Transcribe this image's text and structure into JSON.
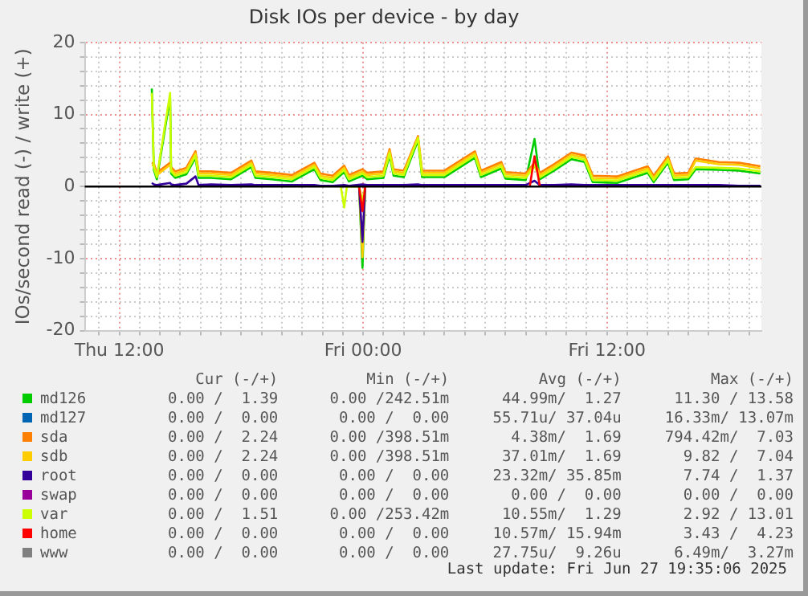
{
  "chart_data": {
    "type": "line",
    "title": "Disk IOs per device - by day",
    "ylabel": "IOs/second read (-) / write (+)",
    "x": [
      "2025-06-26T13:36",
      "2025-06-26T13:42",
      "2025-06-26T13:51",
      "2025-06-26T14:30",
      "2025-06-26T14:33",
      "2025-06-26T14:45",
      "2025-06-26T15:18",
      "2025-06-26T15:45",
      "2025-06-26T15:54",
      "2025-06-26T16:30",
      "2025-06-26T17:30",
      "2025-06-26T18:30",
      "2025-06-26T18:42",
      "2025-06-26T19:30",
      "2025-06-26T20:30",
      "2025-06-26T21:36",
      "2025-06-26T21:54",
      "2025-06-26T22:30",
      "2025-06-26T23:04",
      "2025-06-26T23:18",
      "2025-06-26T23:58",
      "2025-06-27T00:12",
      "2025-06-27T01:00",
      "2025-06-27T01:18",
      "2025-06-27T01:30",
      "2025-06-27T02:00",
      "2025-06-27T02:42",
      "2025-06-27T02:54",
      "2025-06-27T04:00",
      "2025-06-27T05:30",
      "2025-06-27T05:48",
      "2025-06-27T06:48",
      "2025-06-27T07:00",
      "2025-06-27T08:00",
      "2025-06-27T08:26",
      "2025-06-27T08:42",
      "2025-06-27T09:24",
      "2025-06-27T10:15",
      "2025-06-27T10:54",
      "2025-06-27T11:18",
      "2025-06-27T12:30",
      "2025-06-27T14:00",
      "2025-06-27T14:18",
      "2025-06-27T15:00",
      "2025-06-27T15:18",
      "2025-06-27T16:00",
      "2025-06-27T16:22",
      "2025-06-27T17:30",
      "2025-06-27T18:30",
      "2025-06-27T19:33"
    ],
    "xlim": [
      "2025-06-26T10:18",
      "2025-06-27T19:36"
    ],
    "xticks": [
      {
        "value": "2025-06-26T11:00",
        "label": null
      },
      {
        "value": "2025-06-26T12:00",
        "label": "Thu 12:00"
      },
      {
        "value": "2025-06-26T13:00",
        "label": null
      },
      {
        "value": "2025-06-26T14:00",
        "label": null
      },
      {
        "value": "2025-06-26T15:00",
        "label": null
      },
      {
        "value": "2025-06-26T16:00",
        "label": null
      },
      {
        "value": "2025-06-26T17:00",
        "label": null
      },
      {
        "value": "2025-06-26T18:00",
        "label": null
      },
      {
        "value": "2025-06-26T19:00",
        "label": null
      },
      {
        "value": "2025-06-26T20:00",
        "label": null
      },
      {
        "value": "2025-06-26T21:00",
        "label": null
      },
      {
        "value": "2025-06-26T22:00",
        "label": null
      },
      {
        "value": "2025-06-26T23:00",
        "label": null
      },
      {
        "value": "2025-06-27T00:00",
        "label": "Fri 00:00"
      },
      {
        "value": "2025-06-27T01:00",
        "label": null
      },
      {
        "value": "2025-06-27T02:00",
        "label": null
      },
      {
        "value": "2025-06-27T03:00",
        "label": null
      },
      {
        "value": "2025-06-27T04:00",
        "label": null
      },
      {
        "value": "2025-06-27T05:00",
        "label": null
      },
      {
        "value": "2025-06-27T06:00",
        "label": null
      },
      {
        "value": "2025-06-27T07:00",
        "label": null
      },
      {
        "value": "2025-06-27T08:00",
        "label": null
      },
      {
        "value": "2025-06-27T09:00",
        "label": null
      },
      {
        "value": "2025-06-27T10:00",
        "label": null
      },
      {
        "value": "2025-06-27T11:00",
        "label": null
      },
      {
        "value": "2025-06-27T12:00",
        "label": "Fri 12:00"
      },
      {
        "value": "2025-06-27T13:00",
        "label": null
      },
      {
        "value": "2025-06-27T14:00",
        "label": null
      },
      {
        "value": "2025-06-27T15:00",
        "label": null
      },
      {
        "value": "2025-06-27T16:00",
        "label": null
      },
      {
        "value": "2025-06-27T17:00",
        "label": null
      },
      {
        "value": "2025-06-27T18:00",
        "label": null
      },
      {
        "value": "2025-06-27T19:00",
        "label": null
      }
    ],
    "ylim": [
      -20,
      20
    ],
    "yticks": [
      -20,
      {
        "value": -18,
        "label": null
      },
      {
        "value": -16,
        "label": null
      },
      {
        "value": -14,
        "label": null
      },
      {
        "value": -12,
        "label": null
      },
      -10,
      {
        "value": -8,
        "label": null
      },
      {
        "value": -6,
        "label": null
      },
      {
        "value": -4,
        "label": null
      },
      {
        "value": -2,
        "label": null
      },
      0,
      {
        "value": 2,
        "label": null
      },
      {
        "value": 4,
        "label": null
      },
      {
        "value": 6,
        "label": null
      },
      {
        "value": 8,
        "label": null
      },
      10,
      {
        "value": 12,
        "label": null
      },
      {
        "value": 14,
        "label": null
      },
      {
        "value": 16,
        "label": null
      },
      {
        "value": 18,
        "label": null
      },
      20
    ],
    "grid": true,
    "legend": "bottom",
    "marker": "none",
    "ref_lines": [
      {
        "axis": "y",
        "value": 0,
        "color": "#000000"
      }
    ],
    "series": [
      {
        "name": "md126",
        "color": "#00cc00",
        "values": [
          13.6,
          2.3,
          1.0,
          12.4,
          1.8,
          1.2,
          1.7,
          4.0,
          1.2,
          1.2,
          1.0,
          2.7,
          1.2,
          1.0,
          0.7,
          2.4,
          0.9,
          0.6,
          2.0,
          0.7,
          1.5,
          1.0,
          1.2,
          4.3,
          1.5,
          1.3,
          6.4,
          1.3,
          1.3,
          4.0,
          1.3,
          2.5,
          1.1,
          0.9,
          6.6,
          1.0,
          2.2,
          3.8,
          3.4,
          0.6,
          0.5,
          1.9,
          0.6,
          3.3,
          0.9,
          1.0,
          2.4,
          2.3,
          2.2,
          1.8
        ]
      },
      {
        "x": [
          "2025-06-26T23:48",
          "2025-06-26T23:58",
          "2025-06-27T00:06"
        ],
        "color": "#00cc00",
        "values": [
          0,
          -11.3,
          0
        ]
      },
      {
        "name": "md127",
        "color": "#0066b3",
        "values": [
          null,
          null,
          null,
          null,
          null,
          null,
          null,
          null,
          null,
          null,
          null,
          null,
          null,
          null,
          null,
          null,
          null,
          null,
          null,
          null,
          null,
          null,
          null,
          null,
          null,
          null,
          null,
          null,
          null,
          null,
          null,
          null,
          null,
          null,
          null,
          null,
          null,
          null,
          null,
          null,
          null,
          null,
          null,
          null,
          null,
          null,
          null,
          null,
          null,
          null
        ]
      },
      {
        "name": "sda",
        "color": "#ff8000",
        "values": [
          3.3,
          3.2,
          1.9,
          3.3,
          2.7,
          2.1,
          2.6,
          4.9,
          2.1,
          2.1,
          1.9,
          3.6,
          2.1,
          1.9,
          1.6,
          3.3,
          1.8,
          1.5,
          2.9,
          1.6,
          2.4,
          1.9,
          2.1,
          5.2,
          2.4,
          2.2,
          7.0,
          2.2,
          2.2,
          4.9,
          2.2,
          3.4,
          2.0,
          1.8,
          3.3,
          1.9,
          3.1,
          4.7,
          4.3,
          1.5,
          1.4,
          2.8,
          1.5,
          4.2,
          1.8,
          1.9,
          3.9,
          3.4,
          3.3,
          2.8
        ]
      },
      {
        "name": "sdb",
        "color": "#ffcc00",
        "values": [
          3.0,
          2.9,
          1.6,
          3.0,
          2.4,
          1.8,
          2.3,
          4.6,
          1.8,
          1.8,
          1.6,
          3.3,
          1.8,
          1.6,
          1.3,
          3.0,
          1.5,
          1.2,
          2.6,
          1.3,
          2.1,
          1.6,
          1.8,
          4.9,
          2.1,
          1.9,
          6.8,
          1.9,
          1.9,
          4.6,
          1.9,
          3.1,
          1.7,
          1.5,
          3.0,
          1.6,
          2.8,
          4.4,
          4.0,
          1.2,
          1.1,
          2.5,
          1.2,
          3.9,
          1.5,
          1.6,
          3.6,
          3.1,
          3.0,
          2.5
        ]
      },
      {
        "x": [
          "2025-06-26T23:48",
          "2025-06-26T23:58",
          "2025-06-27T00:06"
        ],
        "color": "#ffcc00",
        "values": [
          0,
          -9.8,
          0
        ]
      },
      {
        "name": "root",
        "color": "#330099",
        "values": [
          0.5,
          0.3,
          0.2,
          0.5,
          0.3,
          0.2,
          0.4,
          1.4,
          0.2,
          0.3,
          0.2,
          0.3,
          0.2,
          0.2,
          0.2,
          0.2,
          0.1,
          0.1,
          0.2,
          0.1,
          0.3,
          0.2,
          0.2,
          0.2,
          0.2,
          0.2,
          0.3,
          0.2,
          0.2,
          0.2,
          0.2,
          0.2,
          0.2,
          0.2,
          0.8,
          0.2,
          0.2,
          0.3,
          0.2,
          0.2,
          0.2,
          0.2,
          0.2,
          0.2,
          0.2,
          0.2,
          0.2,
          0.2,
          0.1,
          0.1
        ]
      },
      {
        "x": [
          "2025-06-26T23:48",
          "2025-06-26T23:58",
          "2025-06-27T00:06"
        ],
        "color": "#330099",
        "values": [
          0,
          -7.7,
          0
        ]
      },
      {
        "name": "swap",
        "color": "#990099",
        "values": [
          null,
          null,
          null,
          null,
          null,
          null,
          null,
          null,
          null,
          null,
          null,
          null,
          null,
          null,
          null,
          null,
          null,
          null,
          null,
          null,
          null,
          null,
          null,
          null,
          null,
          null,
          null,
          null,
          null,
          null,
          null,
          null,
          null,
          null,
          null,
          null,
          null,
          null,
          null,
          null,
          null,
          null,
          null,
          null,
          null,
          null,
          null,
          null,
          null,
          null
        ]
      },
      {
        "name": "var",
        "color": "#ccff00",
        "values": [
          13.0,
          2.6,
          1.3,
          13.0,
          2.1,
          1.5,
          2.0,
          4.3,
          1.5,
          1.5,
          1.3,
          3.0,
          1.5,
          1.3,
          1.0,
          2.7,
          1.2,
          0.9,
          2.3,
          1.0,
          1.8,
          1.3,
          1.5,
          4.6,
          1.8,
          1.6,
          6.7,
          1.6,
          1.6,
          4.3,
          1.6,
          2.8,
          1.4,
          1.2,
          2.8,
          1.3,
          2.5,
          4.1,
          3.7,
          0.9,
          0.8,
          2.2,
          0.9,
          3.6,
          1.2,
          1.3,
          2.7,
          2.6,
          2.5,
          2.1
        ]
      },
      {
        "x": [
          "2025-06-26T22:54",
          "2025-06-26T23:04",
          "2025-06-26T23:12",
          "2025-06-26T23:48",
          "2025-06-26T23:58",
          "2025-06-27T00:06"
        ],
        "color": "#ccff00",
        "values": [
          0,
          -2.9,
          0,
          0,
          -2.0,
          0
        ]
      },
      {
        "name": "home",
        "color": "#ff0000",
        "x": [
          "2025-06-27T08:12",
          "2025-06-27T08:26",
          "2025-06-27T08:42"
        ],
        "values": [
          0,
          4.2,
          0
        ]
      },
      {
        "x": [
          "2025-06-26T23:48",
          "2025-06-26T23:58",
          "2025-06-27T00:06"
        ],
        "color": "#ff0000",
        "values": [
          0,
          -3.4,
          0
        ]
      },
      {
        "name": "www",
        "color": "#808080",
        "values": [
          null,
          null,
          null,
          null,
          null,
          null,
          null,
          null,
          null,
          null,
          null,
          null,
          null,
          null,
          null,
          null,
          null,
          null,
          null,
          null,
          null,
          null,
          null,
          null,
          null,
          null,
          null,
          null,
          null,
          null,
          null,
          null,
          null,
          null,
          null,
          null,
          null,
          null,
          null,
          null,
          null,
          null,
          null,
          null,
          null,
          null,
          null,
          null,
          null,
          null
        ]
      }
    ],
    "annotations": [
      "Cur (-/+)",
      "Min (-/+)",
      "Avg (-/+)",
      "Max (-/+)",
      "0.00 /  1.39",
      "0.00 /242.51m",
      "44.99m/  1.27",
      "11.30 / 13.58",
      "0.00 /  0.00",
      "0.00 /  0.00",
      "55.71u/ 37.04u",
      "16.33m/ 13.07m",
      "0.00 /  2.24",
      "0.00 /398.51m",
      "4.38m/  1.69",
      "794.42m/  7.03",
      "0.00 /  2.24",
      "0.00 /398.51m",
      "37.01m/  1.69",
      "9.82 /  7.04",
      "0.00 /  0.00",
      "0.00 /  0.00",
      "23.32m/ 35.85m",
      "7.74 /  1.37",
      "0.00 /  0.00",
      "0.00 /  0.00",
      "0.00 /  0.00",
      "0.00 /  0.00",
      "0.00 /  1.51",
      "0.00 /253.42m",
      "10.55m/  1.29",
      "2.92 / 13.01",
      "0.00 /  0.00",
      "0.00 /  0.00",
      "10.57m/ 15.94m",
      "3.43 /  4.23",
      "0.00 /  0.00",
      "0.00 /  0.00",
      "27.75u/  9.26u",
      "6.49m/  3.27m",
      "Last update: Fri Jun 27 19:35:06 2025"
    ]
  }
}
